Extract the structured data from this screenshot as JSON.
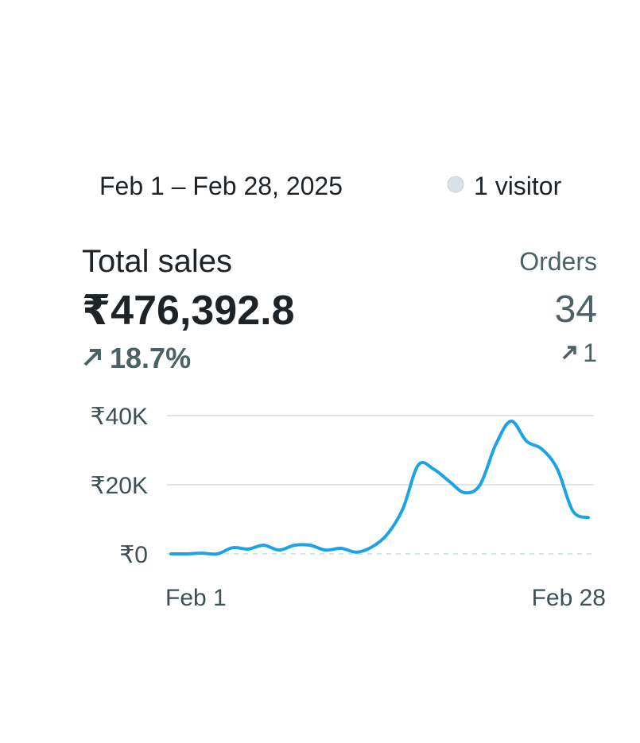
{
  "header": {
    "date_range": "Feb 1 – Feb 28, 2025",
    "visitors": "1 visitor"
  },
  "total_sales": {
    "label": "Total sales",
    "value": "₹476,392.8",
    "change": "18.7%"
  },
  "orders": {
    "label": "Orders",
    "value": "34",
    "change": "1"
  },
  "chart_data": {
    "type": "line",
    "categories": [
      "Feb 1",
      null,
      null,
      null,
      null,
      null,
      null,
      null,
      null,
      null,
      null,
      null,
      null,
      null,
      null,
      null,
      null,
      null,
      null,
      null,
      null,
      null,
      null,
      null,
      null,
      null,
      null,
      "Feb 28"
    ],
    "values": [
      0,
      0,
      200,
      0,
      1800,
      1400,
      2500,
      1100,
      2500,
      2500,
      1100,
      1600,
      500,
      2000,
      5700,
      13000,
      25700,
      24500,
      21000,
      17700,
      20000,
      31500,
      38400,
      32600,
      30300,
      24500,
      12400,
      10500
    ],
    "color": "#1ba3e6",
    "ylim": [
      0,
      40000
    ],
    "yticks": [
      {
        "value": 0,
        "label": "₹0"
      },
      {
        "value": 20000,
        "label": "₹20K"
      },
      {
        "value": 40000,
        "label": "₹40K"
      }
    ],
    "grid": true
  }
}
